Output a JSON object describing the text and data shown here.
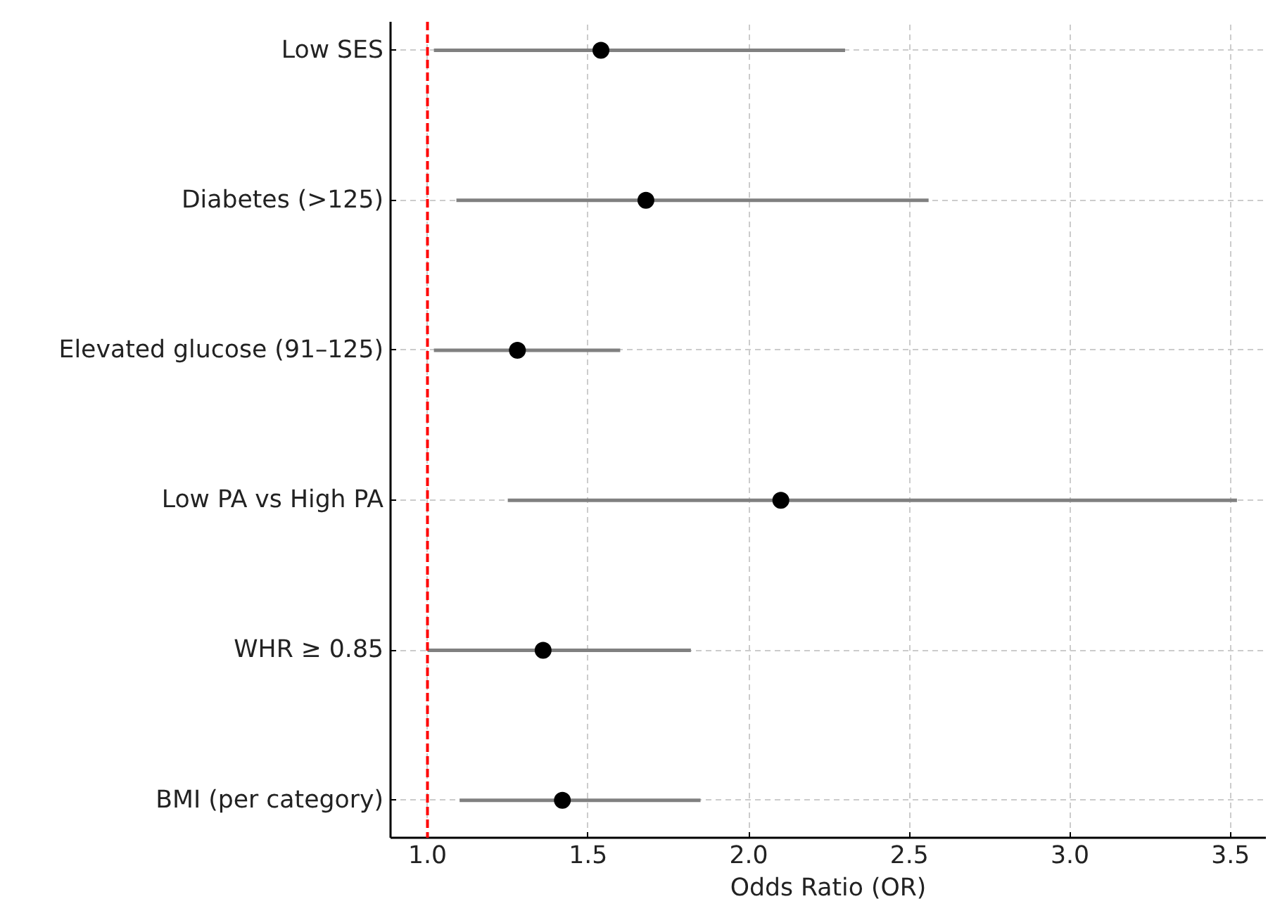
{
  "chart_data": {
    "type": "scatter",
    "orientation": "horizontal",
    "xlabel": "Odds Ratio (OR)",
    "categories": [
      "Low SES",
      "Diabetes (>125)",
      "Elevated glucose (91–125)",
      "Low PA vs High PA",
      "WHR ≥ 0.85",
      "BMI (per category)"
    ],
    "values": [
      1.54,
      1.68,
      1.28,
      2.1,
      1.36,
      1.42
    ],
    "errors": [
      [
        1.02,
        2.3
      ],
      [
        1.09,
        2.56
      ],
      [
        1.02,
        1.6
      ],
      [
        1.25,
        3.52
      ],
      [
        1.0,
        1.82
      ],
      [
        1.1,
        1.85
      ]
    ],
    "color": "#000000",
    "marker": "circle",
    "xlim": [
      0.885,
      3.61
    ],
    "xticks": [
      {
        "value": 1.0,
        "label": "1.0"
      },
      {
        "value": 1.5,
        "label": "1.5"
      },
      {
        "value": 2.0,
        "label": "2.0"
      },
      {
        "value": 2.5,
        "label": "2.5"
      },
      {
        "value": 3.0,
        "label": "3.0"
      },
      {
        "value": 3.5,
        "label": "3.5"
      }
    ],
    "ref_lines": [
      {
        "axis": "x",
        "value": 1.0,
        "label": null,
        "color": "#ff0000",
        "line_style": "dashed"
      }
    ],
    "grid": true
  }
}
